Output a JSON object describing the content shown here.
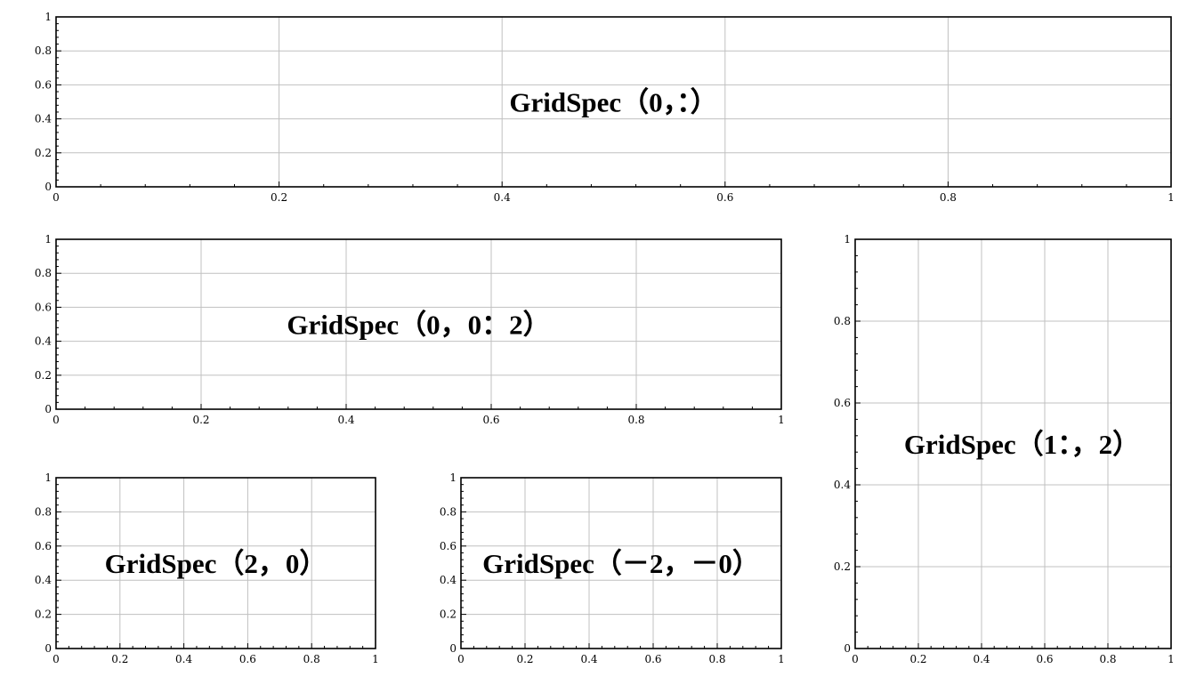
{
  "figure": {
    "background": "#ffffff",
    "axis_color": "#000000",
    "grid_color": "#c0c0c0"
  },
  "chart_data": [
    {
      "type": "line",
      "id": "ax-row0",
      "annotation": "GridSpec（0，：）",
      "xlim": [
        0,
        1
      ],
      "ylim": [
        0,
        1
      ],
      "xticks": [
        0,
        0.2,
        0.4,
        0.6,
        0.8,
        1
      ],
      "xtick_labels": [
        "0",
        "0.2",
        "0.4",
        "0.6",
        "0.8",
        "1"
      ],
      "yticks": [
        0,
        0.2,
        0.4,
        0.6,
        0.8,
        1
      ],
      "ytick_labels": [
        "0",
        "0.2",
        "0.4",
        "0.6",
        "0.8",
        "1"
      ],
      "grid": true,
      "series": []
    },
    {
      "type": "line",
      "id": "ax-row1-left",
      "annotation": "GridSpec（0，0：2）",
      "xlim": [
        0,
        1
      ],
      "ylim": [
        0,
        1
      ],
      "xticks": [
        0,
        0.2,
        0.4,
        0.6,
        0.8,
        1
      ],
      "xtick_labels": [
        "0",
        "0.2",
        "0.4",
        "0.6",
        "0.8",
        "1"
      ],
      "yticks": [
        0,
        0.2,
        0.4,
        0.6,
        0.8,
        1
      ],
      "ytick_labels": [
        "0",
        "0.2",
        "0.4",
        "0.6",
        "0.8",
        "1"
      ],
      "grid": true,
      "series": []
    },
    {
      "type": "line",
      "id": "ax-right-tall",
      "annotation": "GridSpec（1：，2）",
      "xlim": [
        0,
        1
      ],
      "ylim": [
        0,
        1
      ],
      "xticks": [
        0,
        0.2,
        0.4,
        0.6,
        0.8,
        1
      ],
      "xtick_labels": [
        "0",
        "0.2",
        "0.4",
        "0.6",
        "0.8",
        "1"
      ],
      "yticks": [
        0,
        0.2,
        0.4,
        0.6,
        0.8,
        1
      ],
      "ytick_labels": [
        "0",
        "0.2",
        "0.4",
        "0.6",
        "0.8",
        "1"
      ],
      "grid": true,
      "series": []
    },
    {
      "type": "line",
      "id": "ax-bottom-left",
      "annotation": "GridSpec（2，0）",
      "xlim": [
        0,
        1
      ],
      "ylim": [
        0,
        1
      ],
      "xticks": [
        0,
        0.2,
        0.4,
        0.6,
        0.8,
        1
      ],
      "xtick_labels": [
        "0",
        "0.2",
        "0.4",
        "0.6",
        "0.8",
        "1"
      ],
      "yticks": [
        0,
        0.2,
        0.4,
        0.6,
        0.8,
        1
      ],
      "ytick_labels": [
        "0",
        "0.2",
        "0.4",
        "0.6",
        "0.8",
        "1"
      ],
      "grid": true,
      "series": []
    },
    {
      "type": "line",
      "id": "ax-bottom-middle",
      "annotation": "GridSpec（－2，－0）",
      "xlim": [
        0,
        1
      ],
      "ylim": [
        0,
        1
      ],
      "xticks": [
        0,
        0.2,
        0.4,
        0.6,
        0.8,
        1
      ],
      "xtick_labels": [
        "0",
        "0.2",
        "0.4",
        "0.6",
        "0.8",
        "1"
      ],
      "yticks": [
        0,
        0.2,
        0.4,
        0.6,
        0.8,
        1
      ],
      "ytick_labels": [
        "0",
        "0.2",
        "0.4",
        "0.6",
        "0.8",
        "1"
      ],
      "grid": true,
      "series": []
    }
  ]
}
